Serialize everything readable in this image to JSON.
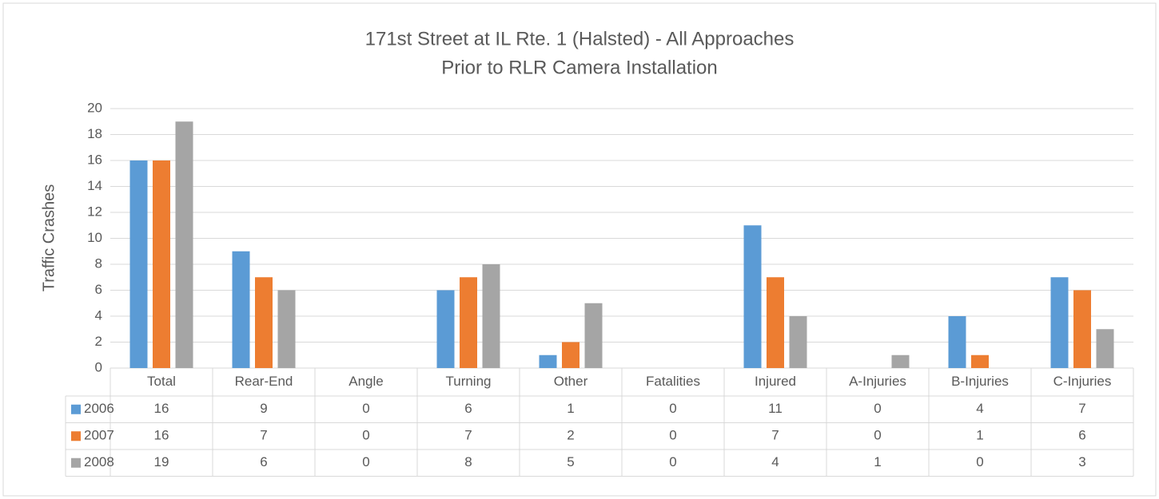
{
  "chart_data": {
    "type": "bar",
    "title": "171st Street at IL Rte. 1 (Halsted) - All Approaches",
    "subtitle": "Prior to RLR Camera Installation",
    "y_label": "Traffic Crashes",
    "categories": [
      "Total",
      "Rear-End",
      "Angle",
      "Turning",
      "Other",
      "Fatalities",
      "Injured",
      "A-Injuries",
      "B-Injuries",
      "C-Injuries"
    ],
    "series": [
      {
        "name": "2006",
        "color": "#5b9bd5",
        "values": [
          16,
          9,
          0,
          6,
          1,
          0,
          11,
          0,
          4,
          7
        ]
      },
      {
        "name": "2007",
        "color": "#ed7d31",
        "values": [
          16,
          7,
          0,
          7,
          2,
          0,
          7,
          0,
          1,
          6
        ]
      },
      {
        "name": "2008",
        "color": "#a5a5a5",
        "values": [
          19,
          6,
          0,
          8,
          5,
          0,
          4,
          1,
          0,
          3
        ]
      }
    ],
    "ylim": [
      0,
      20
    ],
    "yticks": [
      0,
      2,
      4,
      6,
      8,
      10,
      12,
      14,
      16,
      18,
      20
    ],
    "grid": true
  }
}
